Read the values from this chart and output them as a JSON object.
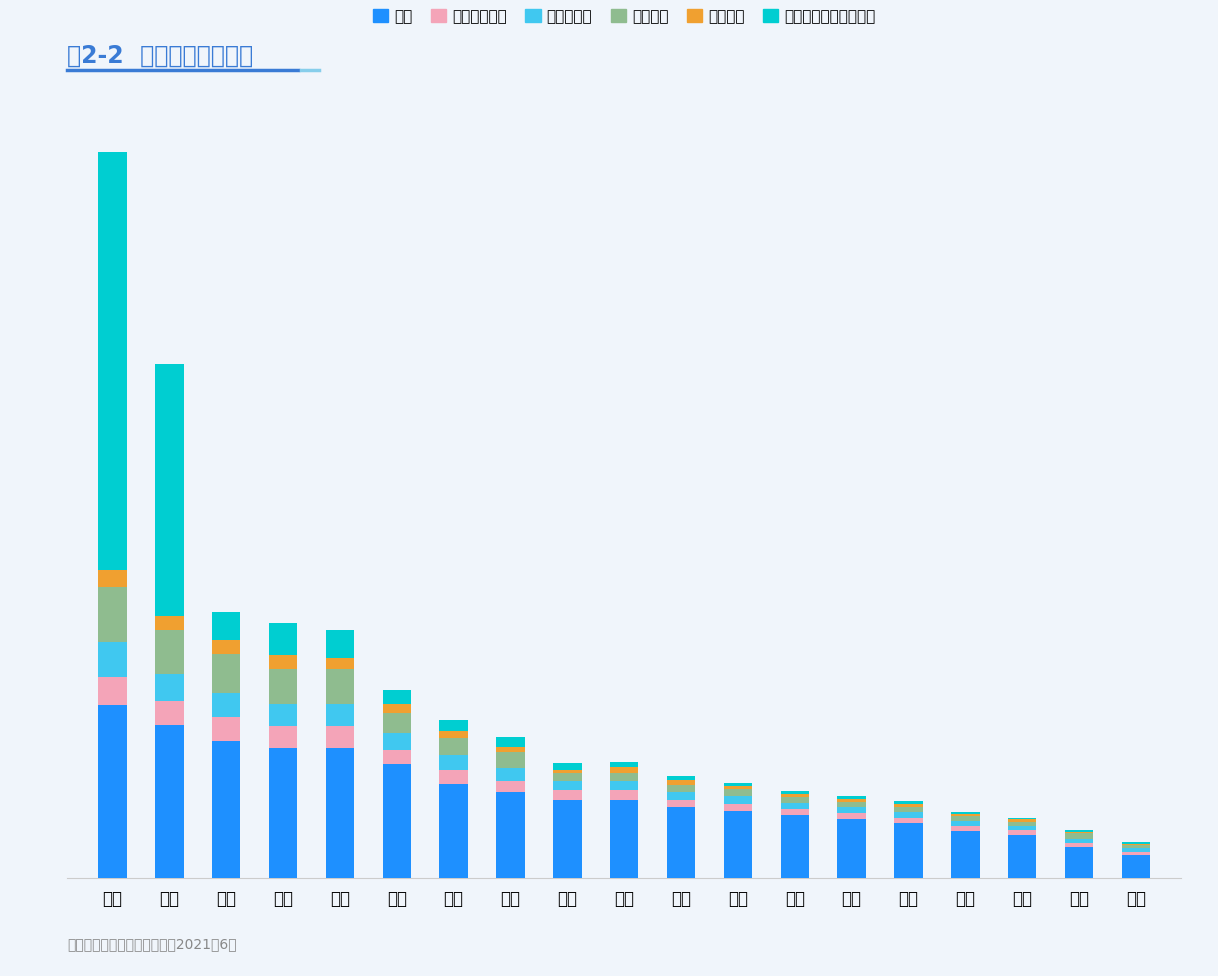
{
  "title": "图2-2  岗位城市需求分布",
  "source_text": "数据来源：项目组调研数据，2021年6月",
  "categories": [
    "北京",
    "广州",
    "深圳",
    "郑州",
    "杭州",
    "上海",
    "成都",
    "沈阳",
    "长沙",
    "西安",
    "武汉",
    "南京",
    "青岛",
    "合肥",
    "重庆",
    "苏州",
    "天津",
    "佛山",
    "东莞"
  ],
  "legend_labels": [
    "主播",
    "达人（网红）",
    "短视频运营",
    "直播运营",
    "直播选品",
    "流量投放（媒介投放）"
  ],
  "colors": [
    "#1E90FF",
    "#F4A4B8",
    "#40C8F0",
    "#8FBC8F",
    "#F0A030",
    "#00CED1"
  ],
  "series": {
    "主播": [
      220,
      195,
      175,
      165,
      165,
      145,
      120,
      110,
      100,
      100,
      90,
      85,
      80,
      75,
      70,
      60,
      55,
      40,
      30
    ],
    "达人（网红）": [
      35,
      30,
      30,
      28,
      28,
      18,
      18,
      14,
      12,
      12,
      10,
      10,
      8,
      8,
      7,
      7,
      6,
      5,
      4
    ],
    "短视频运营": [
      45,
      35,
      30,
      28,
      28,
      22,
      18,
      16,
      12,
      12,
      10,
      10,
      8,
      7,
      7,
      6,
      6,
      5,
      4
    ],
    "直播运营": [
      70,
      55,
      50,
      45,
      45,
      25,
      22,
      20,
      10,
      10,
      8,
      8,
      7,
      7,
      7,
      6,
      5,
      7,
      4
    ],
    "直播选品": [
      22,
      18,
      18,
      18,
      14,
      11,
      9,
      7,
      4,
      7,
      7,
      4,
      4,
      4,
      4,
      3,
      3,
      2,
      2
    ],
    "流量投放（媒介投放）": [
      530,
      320,
      35,
      40,
      35,
      18,
      14,
      12,
      8,
      7,
      5,
      4,
      4,
      3,
      3,
      2,
      2,
      2,
      2
    ]
  },
  "background_color": "#F0F5FB",
  "bar_width": 0.5,
  "ylim_max": 960,
  "title_color": "#3A7BD5",
  "title_fontsize": 17,
  "legend_fontsize": 11,
  "tick_fontsize": 12,
  "source_fontsize": 10,
  "underline_color1": "#3A7BD5",
  "underline_color2": "#87CEEB"
}
